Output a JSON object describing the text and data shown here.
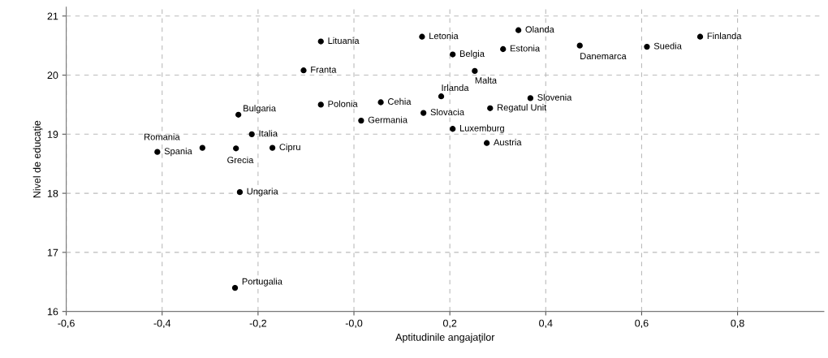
{
  "chart_data": {
    "type": "scatter",
    "xlabel": "Aptitudinile angajaţilor",
    "ylabel": "Nivel de educaţie",
    "xlim": [
      -0.6,
      0.98
    ],
    "ylim": [
      16,
      21.15
    ],
    "xticks": [
      {
        "value": -0.6,
        "label": "-0,6"
      },
      {
        "value": -0.4,
        "label": "-0,4"
      },
      {
        "value": -0.2,
        "label": "-0,2"
      },
      {
        "value": 0,
        "label": "-0,0"
      },
      {
        "value": 0.2,
        "label": "0,2"
      },
      {
        "value": 0.4,
        "label": "0,4"
      },
      {
        "value": 0.6,
        "label": "0,6"
      },
      {
        "value": 0.8,
        "label": "0,8"
      }
    ],
    "yticks": [
      16,
      17,
      18,
      19,
      20,
      21
    ],
    "grid": true,
    "marker": "circle",
    "series": [
      {
        "color": "#000000",
        "x": [
          0.722,
          0.611,
          0.471,
          0.343,
          0.311,
          0.142,
          0.206,
          0.252,
          -0.069,
          -0.105,
          0.182,
          0.368,
          0.284,
          0.056,
          -0.069,
          0.145,
          0.015,
          0.206,
          0.277,
          -0.241,
          -0.213,
          -0.17,
          -0.316,
          -0.246,
          -0.41,
          -0.238,
          -0.248
        ],
        "values": [
          20.65,
          20.48,
          20.5,
          20.76,
          20.44,
          20.65,
          20.35,
          20.07,
          20.57,
          20.08,
          19.64,
          19.61,
          19.44,
          19.54,
          19.5,
          19.36,
          19.23,
          19.09,
          18.85,
          19.33,
          19.0,
          18.77,
          18.77,
          18.76,
          18.7,
          18.02,
          16.4
        ]
      }
    ],
    "annotations": [
      {
        "text": "Finlanda",
        "x": 0.722,
        "y": 20.65
      },
      {
        "text": "Suedia",
        "x": 0.611,
        "y": 20.48
      },
      {
        "text": "Danemarca",
        "x": 0.471,
        "y": 20.5
      },
      {
        "text": "Olanda",
        "x": 0.343,
        "y": 20.76
      },
      {
        "text": "Estonia",
        "x": 0.311,
        "y": 20.44
      },
      {
        "text": "Letonia",
        "x": 0.142,
        "y": 20.65
      },
      {
        "text": "Belgia",
        "x": 0.206,
        "y": 20.35
      },
      {
        "text": "Malta",
        "x": 0.252,
        "y": 20.07
      },
      {
        "text": "Lituania",
        "x": -0.069,
        "y": 20.57
      },
      {
        "text": "Franta",
        "x": -0.105,
        "y": 20.08
      },
      {
        "text": "Irlanda",
        "x": 0.182,
        "y": 19.64
      },
      {
        "text": "Slovenia",
        "x": 0.368,
        "y": 19.61
      },
      {
        "text": "Regatul Unit",
        "x": 0.284,
        "y": 19.44
      },
      {
        "text": "Cehia",
        "x": 0.056,
        "y": 19.54
      },
      {
        "text": "Polonia",
        "x": -0.069,
        "y": 19.5
      },
      {
        "text": "Slovacia",
        "x": 0.145,
        "y": 19.36
      },
      {
        "text": "Germania",
        "x": 0.015,
        "y": 19.23
      },
      {
        "text": "Luxemburg",
        "x": 0.206,
        "y": 19.09
      },
      {
        "text": "Austria",
        "x": 0.277,
        "y": 18.85
      },
      {
        "text": "Bulgaria",
        "x": -0.241,
        "y": 19.33
      },
      {
        "text": "Italia",
        "x": -0.213,
        "y": 19.0
      },
      {
        "text": "Cipru",
        "x": -0.17,
        "y": 18.77
      },
      {
        "text": "Romania",
        "x": -0.316,
        "y": 18.77
      },
      {
        "text": "Grecia",
        "x": -0.246,
        "y": 18.76
      },
      {
        "text": "Spania",
        "x": -0.41,
        "y": 18.7
      },
      {
        "text": "Ungaria",
        "x": -0.238,
        "y": 18.02
      },
      {
        "text": "Portugalia",
        "x": -0.248,
        "y": 16.4
      }
    ]
  }
}
